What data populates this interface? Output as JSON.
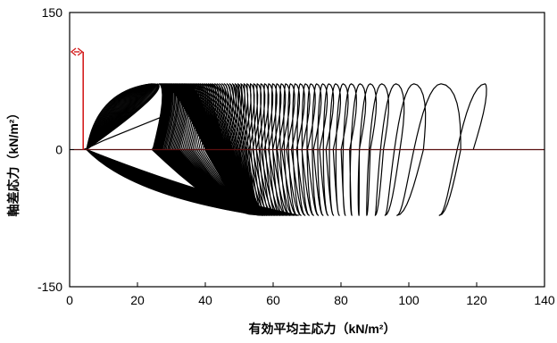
{
  "chart_data": {
    "type": "line",
    "title": "",
    "xlabel": "有効平均主応力（kN/m²）",
    "ylabel": "軸差応力（kN/m²）",
    "xlim": [
      0,
      140
    ],
    "ylim": [
      -150,
      150
    ],
    "xticks": [
      0,
      20,
      40,
      60,
      80,
      100,
      120,
      140
    ],
    "yticks": [
      -150,
      0,
      150
    ],
    "xtick_labels": [
      "0",
      "20",
      "40",
      "60",
      "80",
      "100",
      "120",
      "140"
    ],
    "ytick_labels": [
      "-150",
      "0",
      "150"
    ],
    "grid": false,
    "zero_line": true,
    "colors": {
      "path": "#000000",
      "zero_line": "#5a0f0f",
      "annotation": "#d42020",
      "frame": "#000000"
    },
    "annotation": {
      "type": "arrow-marker",
      "x_range": [
        0,
        4
      ],
      "y_top": 107,
      "y_bottom": 0
    },
    "stress_path": {
      "start": [
        4,
        0
      ],
      "q_amplitude_top": 72,
      "q_amplitude_bottom": -72,
      "loop_centers_p_top": [
        122.5,
        109.5,
        101.5,
        96.2,
        92.0,
        88.6,
        85.6,
        83.0,
        80.6,
        78.4,
        76.4,
        74.6,
        72.8,
        71.1,
        69.5,
        68.0,
        66.5,
        65.1,
        63.7,
        62.4,
        61.1,
        59.9,
        58.7,
        57.5,
        56.4,
        55.3,
        54.3,
        53.3,
        52.3,
        51.4,
        50.5,
        49.6,
        48.8,
        48.0,
        47.2,
        46.4,
        45.6,
        44.9,
        44.2,
        43.5,
        42.8,
        42.1,
        41.5,
        40.9,
        40.3,
        39.7,
        39.1,
        38.5,
        38.0,
        37.5,
        37.0,
        36.5,
        36.0,
        35.5,
        35.0,
        34.5,
        34.1,
        33.7,
        33.3,
        32.9,
        32.5,
        32.1,
        31.7,
        31.3,
        31.0,
        30.6,
        30.2,
        29.9,
        29.5,
        29.2,
        28.9,
        28.6,
        28.3,
        28.0,
        27.7,
        27.4,
        27.1,
        26.9,
        26.6,
        26.4,
        26.2
      ],
      "loop_centers_p_bottom": [
        109,
        96.5,
        93.0,
        90.1,
        87.6,
        85.3,
        83.2,
        81.3,
        79.5,
        77.8,
        76.2,
        74.7,
        73.3,
        71.9,
        70.6,
        69.4,
        68.2,
        67.0,
        65.9,
        64.9,
        63.9,
        62.9,
        62.0,
        61.1,
        60.3,
        59.5,
        58.8,
        58.1,
        57.5,
        57.0
      ],
      "loop_half_width": 3.0,
      "num_cycles": 80
    }
  }
}
